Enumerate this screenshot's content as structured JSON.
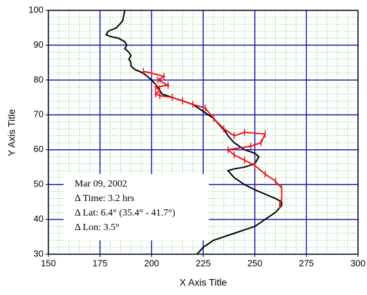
{
  "chart_data": {
    "type": "line",
    "x_label": "X Axis Title",
    "y_label": "Y Axis Title",
    "xlim": [
      150,
      300
    ],
    "ylim": [
      30,
      100
    ],
    "xticks": [
      150,
      175,
      200,
      225,
      250,
      275,
      300
    ],
    "yticks": [
      30,
      40,
      50,
      60,
      70,
      80,
      90,
      100
    ],
    "x_minor_ticks": [
      155,
      160,
      165,
      170,
      180,
      185,
      190,
      195,
      205,
      210,
      215,
      220,
      230,
      235,
      240,
      245,
      255,
      260,
      265,
      270,
      280,
      285,
      290,
      295
    ],
    "y_minor_ticks": [
      32,
      34,
      36,
      38,
      42,
      44,
      46,
      48,
      52,
      54,
      56,
      58,
      62,
      64,
      66,
      68,
      72,
      74,
      76,
      78,
      82,
      84,
      86,
      88,
      92,
      94,
      96,
      98
    ],
    "grid": true,
    "grid_color": "#1a1aa8",
    "minor_grid_color": "#9fd89f",
    "series": [
      {
        "color": "#000000",
        "marker": "none",
        "x": [
          187,
          186,
          183,
          179,
          178,
          180,
          184,
          187,
          188,
          187,
          189,
          190,
          189,
          190,
          190,
          192,
          196,
          200,
          203,
          205,
          210,
          215,
          220,
          225,
          230,
          233,
          236,
          237,
          240,
          245,
          250,
          252,
          250,
          245,
          240,
          237,
          240,
          245,
          250,
          256,
          260,
          263,
          263,
          260,
          255,
          250,
          240,
          230,
          225,
          222
        ],
        "values": [
          100,
          97,
          95,
          94,
          93,
          92.5,
          92,
          91,
          90,
          89,
          88,
          87,
          86,
          85,
          84,
          83,
          82,
          80,
          78,
          76,
          75,
          74,
          73,
          71,
          69,
          67,
          65,
          64,
          62,
          60,
          59,
          58,
          56,
          55,
          54.5,
          54,
          52,
          50,
          48.5,
          47,
          46,
          45,
          44,
          42,
          40,
          38,
          36,
          34,
          32,
          30
        ]
      },
      {
        "color": "#e8141c",
        "marker": "tick",
        "x": [
          196,
          200,
          206,
          203,
          208,
          202,
          204,
          202,
          204,
          210,
          215,
          220,
          226,
          230,
          235,
          240,
          245,
          255,
          253,
          248,
          237,
          240,
          245,
          250,
          255,
          260,
          263,
          263,
          262
        ],
        "values": [
          82.5,
          82,
          81,
          80,
          78.5,
          78,
          77,
          76,
          75.5,
          75,
          74,
          73,
          72,
          69,
          66,
          64,
          65,
          64.5,
          62,
          61,
          60,
          58.5,
          57,
          55.5,
          53,
          51,
          49,
          46,
          44
        ]
      }
    ],
    "annotation": [
      "Mar 09, 2002",
      "Δ Time: 3.2 hrs",
      "Δ Lat: 6.4° (35.4° - 41.7°)",
      "Δ Lon: 3.5°"
    ]
  }
}
